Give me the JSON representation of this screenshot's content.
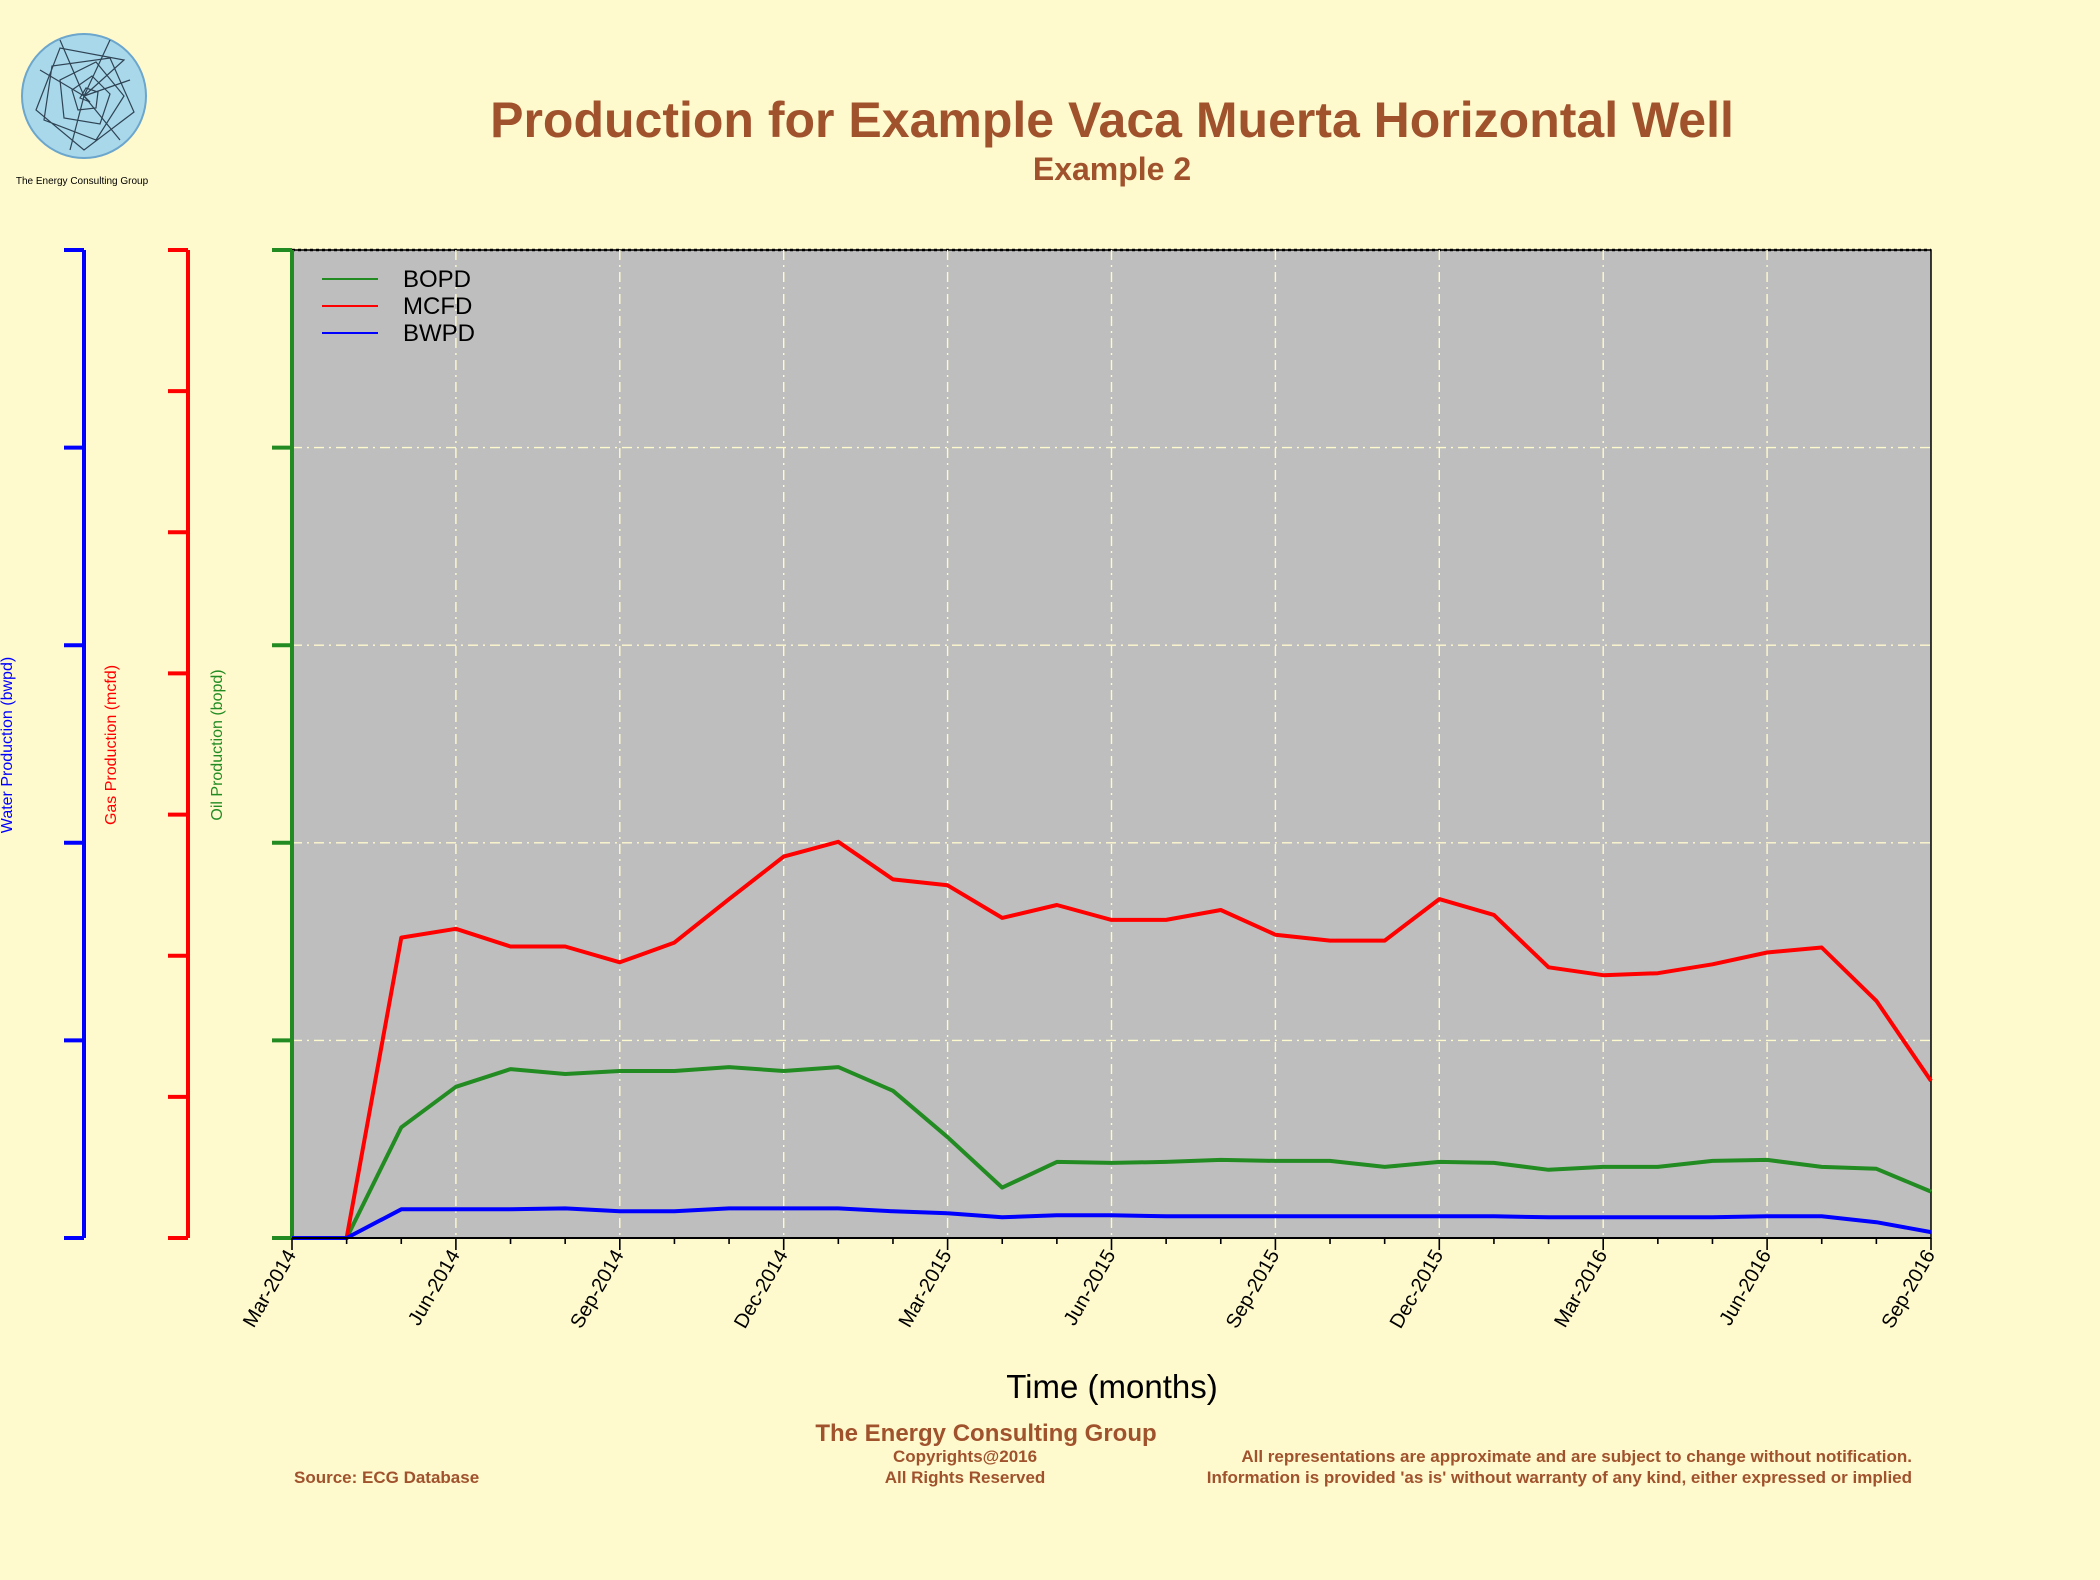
{
  "logo": {
    "caption": "The Energy Consulting Group"
  },
  "header": {
    "title": "Production for Example Vaca Muerta Horizontal Well",
    "subtitle": "Example 2"
  },
  "axes": {
    "water_label": "Water Production (bwpd)",
    "gas_label": "Gas Production (mcfd)",
    "oil_label": "Oil Production (bopd)",
    "x_label": "Time (months)"
  },
  "footer": {
    "company": "The Energy Consulting Group",
    "copyright": "Copyrights@2016",
    "rights": "All Rights Reserved",
    "source": "Source: ECG Database",
    "disclaimer_1": "All representations are approximate and are subject to change without notification.",
    "disclaimer_2": "Information is provided 'as is' without warranty of any kind, either expressed or implied"
  },
  "colors": {
    "background": "#FFFACD",
    "plot_background": "#BEBEBE",
    "title": "#A0522D",
    "oil": "#228B22",
    "gas": "#FF0000",
    "water": "#0000FF",
    "grid": "#FFFACD"
  },
  "chart_data": {
    "type": "line",
    "title": "Production for Example Vaca Muerta Horizontal Well",
    "subtitle": "Example 2",
    "xlabel": "Time (months)",
    "x_ticks": [
      "Mar-2014",
      "Jun-2014",
      "Sep-2014",
      "Dec-2014",
      "Mar-2015",
      "Jun-2015",
      "Sep-2015",
      "Dec-2015",
      "Mar-2016",
      "Jun-2016",
      "Sep-2016"
    ],
    "x": [
      "Mar-2014",
      "Apr-2014",
      "May-2014",
      "Jun-2014",
      "Jul-2014",
      "Aug-2014",
      "Sep-2014",
      "Oct-2014",
      "Nov-2014",
      "Dec-2014",
      "Jan-2015",
      "Feb-2015",
      "Mar-2015",
      "Apr-2015",
      "May-2015",
      "Jun-2015",
      "Jul-2015",
      "Aug-2015",
      "Sep-2015",
      "Oct-2015",
      "Nov-2015",
      "Dec-2015",
      "Jan-2016",
      "Feb-2016",
      "Mar-2016",
      "Apr-2016",
      "May-2016",
      "Jun-2016",
      "Jul-2016",
      "Aug-2016",
      "Sep-2016"
    ],
    "grid": true,
    "legend": "top-left",
    "tick_labels_on_y": false,
    "series": [
      {
        "name": "BOPD",
        "axis": "Oil Production (bopd)",
        "color": "#228B22",
        "values": [
          0,
          0,
          0.112,
          0.153,
          0.171,
          0.166,
          0.169,
          0.169,
          0.173,
          0.169,
          0.173,
          0.149,
          0.102,
          0.051,
          0.077,
          0.076,
          0.077,
          0.079,
          0.078,
          0.078,
          0.072,
          0.077,
          0.076,
          0.069,
          0.072,
          0.072,
          0.078,
          0.079,
          0.072,
          0.07,
          0.047
        ]
      },
      {
        "name": "MCFD",
        "axis": "Gas Production (mcfd)",
        "color": "#FF0000",
        "values": [
          0,
          0,
          0.304,
          0.313,
          0.295,
          0.295,
          0.279,
          0.299,
          0.343,
          0.386,
          0.401,
          0.363,
          0.357,
          0.324,
          0.337,
          0.322,
          0.322,
          0.332,
          0.307,
          0.301,
          0.301,
          0.343,
          0.327,
          0.274,
          0.266,
          0.268,
          0.277,
          0.289,
          0.294,
          0.24,
          0.159
        ]
      },
      {
        "name": "BWPD",
        "axis": "Water Production (bwpd)",
        "color": "#0000FF",
        "values": [
          0,
          0,
          0.029,
          0.029,
          0.029,
          0.03,
          0.027,
          0.027,
          0.03,
          0.03,
          0.03,
          0.027,
          0.025,
          0.021,
          0.023,
          0.023,
          0.022,
          0.022,
          0.022,
          0.022,
          0.022,
          0.022,
          0.022,
          0.021,
          0.021,
          0.021,
          0.021,
          0.022,
          0.022,
          0.016,
          0.006
        ]
      }
    ]
  }
}
